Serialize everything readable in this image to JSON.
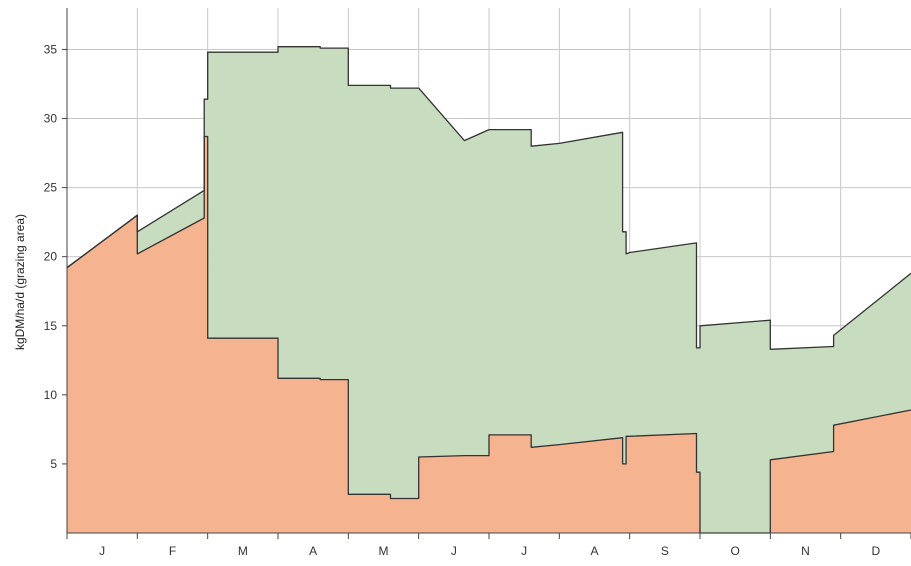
{
  "chart_data": {
    "type": "area",
    "ylabel": "kgDM/ha/d (grazing area)",
    "xlabel": "",
    "title": "",
    "ylim": [
      0,
      38
    ],
    "yticks": [
      5,
      10,
      15,
      20,
      25,
      30,
      35
    ],
    "x_categories": [
      "J",
      "F",
      "M",
      "A",
      "M",
      "J",
      "J",
      "A",
      "S",
      "O",
      "N",
      "D"
    ],
    "x_unit": "month (0 = start of January, 12 = end of December)",
    "grid": true,
    "legend": "none",
    "colors": {
      "lower_fill": "#f5b48f",
      "upper_fill": "#c8dcbf",
      "outline": "#333333",
      "grid": "#c8c8c8"
    },
    "series": [
      {
        "x": [
          0,
          1.0,
          1.0,
          1.95,
          1.95,
          2.0,
          2.0,
          3.0,
          3.0,
          3.6,
          3.6,
          4.0,
          4.0,
          4.6,
          4.6,
          5.0,
          5.0,
          5.65,
          5.65,
          6.0,
          6.0,
          6.6,
          6.6,
          7.0,
          7.0,
          7.9,
          7.9,
          7.95,
          7.95,
          8.0,
          8.0,
          8.95,
          8.95,
          9.0,
          9.0,
          10.0,
          10.0,
          10.9,
          10.9,
          12.0
        ],
        "y": [
          19.2,
          23.0,
          20.2,
          22.8,
          28.7,
          28.7,
          14.1,
          14.1,
          11.2,
          11.2,
          11.1,
          11.1,
          2.8,
          2.8,
          2.5,
          2.5,
          5.5,
          5.6,
          5.6,
          5.6,
          7.1,
          7.1,
          6.2,
          6.4,
          6.4,
          6.9,
          5.0,
          5.0,
          7.0,
          7.0,
          7.0,
          7.2,
          4.4,
          4.4,
          0,
          0,
          5.3,
          5.9,
          7.8,
          8.9
        ]
      },
      {
        "x": [
          0,
          1.0,
          1.0,
          1.95,
          1.95,
          2.0,
          2.0,
          3.0,
          3.0,
          3.6,
          3.6,
          4.0,
          4.0,
          4.6,
          4.6,
          5.0,
          5.0,
          5.65,
          5.65,
          6.0,
          6.0,
          6.6,
          6.6,
          7.0,
          7.0,
          7.9,
          7.9,
          7.95,
          7.95,
          8.0,
          8.0,
          8.95,
          8.95,
          9.0,
          9.0,
          10.0,
          10.0,
          10.9,
          10.9,
          12.0
        ],
        "y": [
          19.2,
          23.0,
          21.8,
          24.8,
          31.4,
          31.4,
          34.8,
          34.8,
          35.2,
          35.2,
          35.1,
          35.1,
          32.4,
          32.4,
          32.2,
          32.2,
          32.2,
          28.4,
          28.4,
          29.2,
          29.2,
          29.2,
          28.0,
          28.2,
          28.2,
          29.0,
          21.8,
          21.8,
          20.2,
          20.3,
          20.3,
          21.0,
          13.4,
          13.4,
          15.0,
          15.4,
          13.3,
          13.5,
          14.3,
          18.8
        ]
      }
    ]
  }
}
